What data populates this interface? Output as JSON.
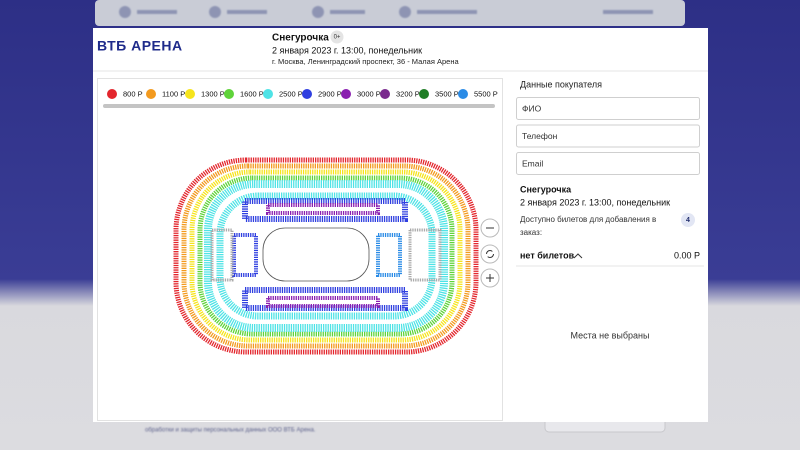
{
  "header": {
    "logo": "ВТБ АРЕНА",
    "title": "Снегурочка",
    "age": "0+",
    "datetime": "2 января 2023 г. 13:00, понедельник",
    "address": "г. Москва, Ленинградский проспект, 36 - Малая Арена"
  },
  "legend": [
    {
      "label": "800 Р",
      "color": "#e3262d"
    },
    {
      "label": "1100 Р",
      "color": "#f39a1e"
    },
    {
      "label": "1300 Р",
      "color": "#f6e41c"
    },
    {
      "label": "1600 Р",
      "color": "#5fd33a"
    },
    {
      "label": "2500 Р",
      "color": "#4fe3e6"
    },
    {
      "label": "2900 Р",
      "color": "#2f3fe0"
    },
    {
      "label": "3000 Р",
      "color": "#8a1fb0"
    },
    {
      "label": "3200 Р",
      "color": "#7a2a8e"
    },
    {
      "label": "3500 Р",
      "color": "#1f7d25"
    },
    {
      "label": "5500 Р",
      "color": "#2a8be6"
    }
  ],
  "buyer": {
    "heading": "Данные покупателя",
    "fields": [
      "ФИО",
      "Телефон",
      "Email"
    ]
  },
  "order": {
    "title": "Снегурочка",
    "datetime": "2 января 2023 г. 13:00, понедельник",
    "available_label": "Доступно билетов для добавления в заказ:",
    "available_count": "4",
    "tickets_label": "нет билетов",
    "total": "0.00 Р",
    "empty_message": "Места не выбраны"
  },
  "background": {
    "footer_text": "обработки и защиты персональных данных ООО ВТБ Арена."
  }
}
